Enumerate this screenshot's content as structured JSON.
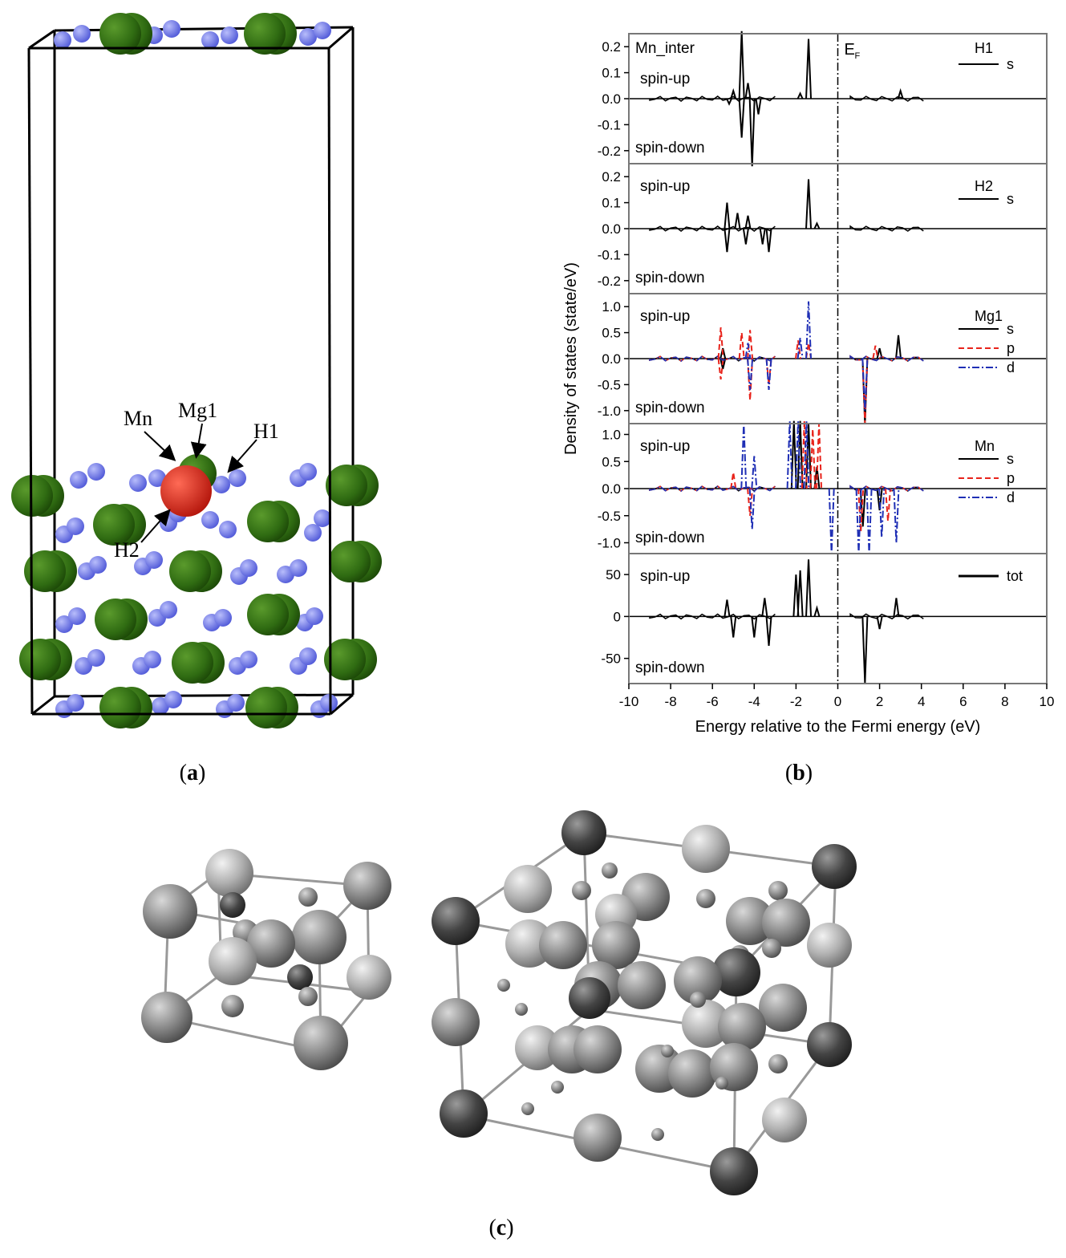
{
  "panel_a": {
    "labels": {
      "mn": "Mn",
      "mg1": "Mg1",
      "h1": "H1",
      "h2": "H2"
    },
    "colors": {
      "mg": "#2f6b12",
      "h": "#6b74e6",
      "mn": "#d8281c"
    },
    "caption_open": "(",
    "caption_letter": "a",
    "caption_close": ")"
  },
  "panel_b": {
    "caption_open": "(",
    "caption_letter": "b",
    "caption_close": ")",
    "xlabel": "Energy relative to the Fermi energy (eV)",
    "ylabel": "Density of states (state/eV)",
    "fermi_label": "E",
    "fermi_sub": "F",
    "x_ticks": [
      "-10",
      "-8",
      "-6",
      "-4",
      "-2",
      "0",
      "2",
      "4",
      "6",
      "8",
      "10"
    ],
    "spin_up": "spin-up",
    "spin_down": "spin-down",
    "subplots": [
      {
        "title": "Mn_inter",
        "atom": "H1",
        "legend": [
          "s"
        ],
        "yticks": [
          "0.2",
          "0.1",
          "0.0",
          "-0.1",
          "-0.2"
        ]
      },
      {
        "atom": "H2",
        "legend": [
          "s"
        ],
        "yticks": [
          "0.2",
          "0.1",
          "0.0",
          "-0.1",
          "-0.2"
        ]
      },
      {
        "atom": "Mg1",
        "legend": [
          "s",
          "p",
          "d"
        ],
        "yticks": [
          "1.0",
          "0.5",
          "0.0",
          "-0.5",
          "-1.0"
        ]
      },
      {
        "atom": "Mn",
        "legend": [
          "s",
          "p",
          "d"
        ],
        "yticks": [
          "1.0",
          "0.5",
          "0.0",
          "-0.5",
          "-1.0"
        ]
      },
      {
        "atom": "tot",
        "legend": [],
        "yticks": [
          "50",
          "0",
          "-50"
        ]
      }
    ],
    "colors": {
      "s": "#000000",
      "p": "#e8231b",
      "d": "#1f2fb5"
    }
  },
  "chart_data": {
    "type": "line",
    "xlabel": "Energy relative to the Fermi energy (eV)",
    "ylabel": "Density of states (state/eV)",
    "xlim": [
      -10,
      10
    ],
    "fermi_level": 0,
    "panels": [
      {
        "atom": "H1",
        "ylim": [
          -0.25,
          0.25
        ],
        "series": [
          {
            "name": "s",
            "peaks_up": [
              [
                -4.6,
                0.26
              ],
              [
                -4.3,
                0.06
              ],
              [
                -5.0,
                0.03
              ],
              [
                -1.4,
                0.23
              ],
              [
                -1.8,
                0.02
              ],
              [
                3.0,
                0.03
              ]
            ],
            "peaks_down": [
              [
                -4.1,
                -0.26
              ],
              [
                -4.6,
                -0.15
              ],
              [
                -3.8,
                -0.06
              ],
              [
                -5.2,
                -0.02
              ]
            ]
          }
        ]
      },
      {
        "atom": "H2",
        "ylim": [
          -0.25,
          0.25
        ],
        "series": [
          {
            "name": "s",
            "peaks_up": [
              [
                -5.3,
                0.1
              ],
              [
                -4.8,
                0.06
              ],
              [
                -4.3,
                0.05
              ],
              [
                -1.4,
                0.19
              ],
              [
                -1.0,
                0.02
              ],
              [
                2.5,
                0.0
              ]
            ],
            "peaks_down": [
              [
                -5.3,
                -0.09
              ],
              [
                -4.4,
                -0.06
              ],
              [
                -3.3,
                -0.09
              ],
              [
                -3.6,
                -0.06
              ]
            ]
          }
        ]
      },
      {
        "atom": "Mg1",
        "ylim": [
          -1.25,
          1.25
        ],
        "series": [
          {
            "name": "s",
            "peaks_up": [
              [
                -5.5,
                0.2
              ],
              [
                2.9,
                0.45
              ],
              [
                2.0,
                0.2
              ]
            ],
            "peaks_down": [
              [
                -5.5,
                -0.2
              ],
              [
                1.3,
                -1.25
              ]
            ]
          },
          {
            "name": "p",
            "peaks_up": [
              [
                -5.6,
                0.6
              ],
              [
                -4.6,
                0.5
              ],
              [
                -4.2,
                0.55
              ],
              [
                -1.9,
                0.35
              ],
              [
                -1.4,
                0.3
              ],
              [
                1.8,
                0.25
              ]
            ],
            "peaks_down": [
              [
                -5.6,
                -0.4
              ],
              [
                -4.2,
                -0.8
              ],
              [
                -3.3,
                -0.5
              ],
              [
                1.3,
                -1.25
              ]
            ]
          },
          {
            "name": "d",
            "peaks_up": [
              [
                -1.4,
                1.1
              ],
              [
                -1.8,
                0.4
              ],
              [
                -4.3,
                0.3
              ]
            ],
            "peaks_down": [
              [
                -4.2,
                -0.6
              ],
              [
                -3.3,
                -0.6
              ],
              [
                1.3,
                -1.0
              ]
            ]
          }
        ]
      },
      {
        "atom": "Mn",
        "ylim": [
          -1.2,
          1.2
        ],
        "series": [
          {
            "name": "s",
            "peaks_up": [
              [
                -2.1,
                1.25
              ],
              [
                -1.8,
                1.25
              ],
              [
                -1.4,
                1.2
              ],
              [
                -1.0,
                0.4
              ]
            ],
            "peaks_down": [
              [
                1.2,
                -0.7
              ],
              [
                2.0,
                -0.4
              ]
            ]
          },
          {
            "name": "p",
            "peaks_up": [
              [
                -5.0,
                0.3
              ],
              [
                -1.6,
                1.25
              ],
              [
                -1.2,
                1.1
              ],
              [
                -0.9,
                1.2
              ]
            ],
            "peaks_down": [
              [
                -4.2,
                -0.5
              ],
              [
                1.1,
                -0.8
              ],
              [
                2.4,
                -0.6
              ]
            ]
          },
          {
            "name": "d",
            "peaks_up": [
              [
                -4.5,
                1.2
              ],
              [
                -4.0,
                0.6
              ],
              [
                -2.3,
                1.25
              ],
              [
                -1.9,
                1.25
              ],
              [
                -1.5,
                1.25
              ]
            ],
            "peaks_down": [
              [
                -4.1,
                -0.75
              ],
              [
                -0.3,
                -1.2
              ],
              [
                1.0,
                -1.2
              ],
              [
                1.5,
                -1.2
              ],
              [
                2.1,
                -0.9
              ],
              [
                2.8,
                -1.0
              ]
            ]
          }
        ]
      },
      {
        "atom": "tot",
        "ylim": [
          -80,
          75
        ],
        "series": [
          {
            "name": "tot",
            "peaks_up": [
              [
                -5.3,
                20
              ],
              [
                -3.5,
                22
              ],
              [
                -2.0,
                50
              ],
              [
                -1.8,
                55
              ],
              [
                -1.4,
                68
              ],
              [
                -1.0,
                10
              ],
              [
                2.8,
                22
              ]
            ],
            "peaks_down": [
              [
                -5.0,
                -25
              ],
              [
                -4.0,
                -25
              ],
              [
                -3.3,
                -35
              ],
              [
                1.3,
                -80
              ],
              [
                2.0,
                -15
              ]
            ]
          }
        ]
      }
    ]
  },
  "panel_c": {
    "caption_open": "(",
    "caption_letter": "c",
    "caption_close": ")",
    "colors": {
      "light": "#bdbdbd",
      "mid": "#8a8a8a",
      "dark": "#444444"
    }
  }
}
